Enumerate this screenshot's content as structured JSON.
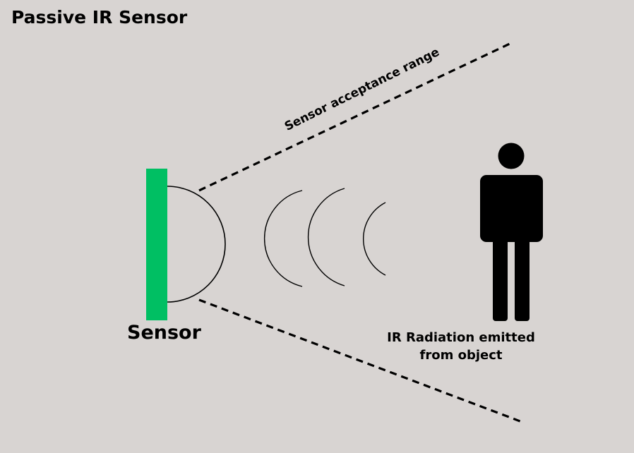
{
  "title": "Passive IR Sensor",
  "labels": {
    "sensor": "Sensor",
    "acceptance_range": "Sensor acceptance range",
    "object_line1": "IR Radiation emitted",
    "object_line2": "from object"
  },
  "colors": {
    "background": "#d8d4d2",
    "sensor_bar": "#00bf63",
    "ink": "#000000"
  },
  "icons": [
    "person-icon",
    "infrared-wave-icon"
  ]
}
